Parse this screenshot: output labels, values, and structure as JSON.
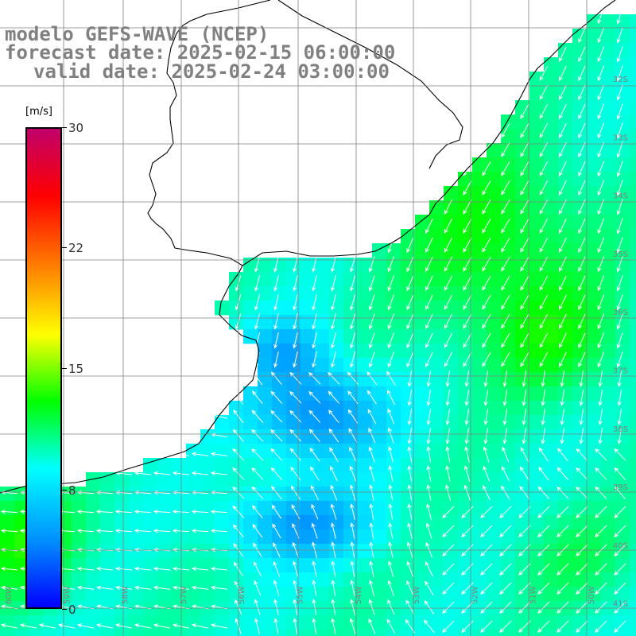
{
  "title": {
    "model": "modelo GEFS-WAVE (NCEP)",
    "forecast": "forecast date: 2025-02-15 06:00:00",
    "valid": "valid date: 2025-02-24 03:00:00"
  },
  "colorbar": {
    "unit": "[m/s]",
    "min": 0,
    "max": 30,
    "ticks": [
      "30",
      "22",
      "15",
      "8",
      "0"
    ],
    "colors": [
      "#0000ff",
      "#0090ff",
      "#00ffff",
      "#00ff00",
      "#ffff00",
      "#ff8000",
      "#ff0000",
      "#c0006b"
    ]
  },
  "map": {
    "lat_labels": [
      "32S",
      "33S",
      "34S",
      "35S",
      "36S",
      "37S",
      "38S",
      "39S",
      "40S",
      "41S"
    ],
    "lon_labels": [
      "60W",
      "59W",
      "58W",
      "57W",
      "56W",
      "55W",
      "54W",
      "53W",
      "52W",
      "51W",
      "50W"
    ],
    "land_color": "#ffffff",
    "grid_color": "#808080",
    "arrow_color": "#ffffff"
  }
}
